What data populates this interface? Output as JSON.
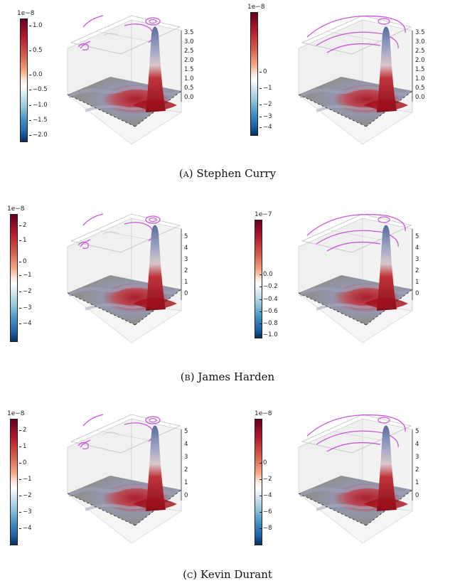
{
  "figures": [
    {
      "caption_label": "(a)",
      "caption_name": "Stephen Curry",
      "left": {
        "exponent": "1e−8",
        "ticks": [
          "1.0",
          "0.5",
          "0.0",
          "−0.5",
          "−1.0",
          "−1.5",
          "−2.0"
        ]
      },
      "right": {
        "exponent": "1e−8",
        "ticks": [
          "0",
          "−1",
          "−2",
          "−3",
          "−4"
        ]
      },
      "z_ticks": [
        "3.5",
        "3.0",
        "2.5",
        "2.0",
        "1.5",
        "1.0",
        "0.5",
        "0.0"
      ]
    },
    {
      "caption_label": "(b)",
      "caption_name": "James Harden",
      "left": {
        "exponent": "1e−8",
        "ticks": [
          "2",
          "1",
          "0",
          "−1",
          "−2",
          "−3",
          "−4"
        ]
      },
      "right": {
        "exponent": "1e−7",
        "ticks": [
          "0.0",
          "−0.2",
          "−0.4",
          "−0.6",
          "−0.8",
          "−1.0"
        ]
      },
      "z_ticks": [
        "5",
        "4",
        "3",
        "2",
        "1",
        "0"
      ]
    },
    {
      "caption_label": "(c)",
      "caption_name": "Kevin Durant",
      "left": {
        "exponent": "1e−8",
        "ticks": [
          "2",
          "1",
          "0",
          "−1",
          "−2",
          "−3",
          "−4"
        ]
      },
      "right": {
        "exponent": "1e−8",
        "ticks": [
          "0",
          "−2",
          "−4",
          "−6",
          "−8"
        ]
      },
      "z_ticks": [
        "5",
        "4",
        "3",
        "2",
        "1",
        "0"
      ]
    }
  ]
}
